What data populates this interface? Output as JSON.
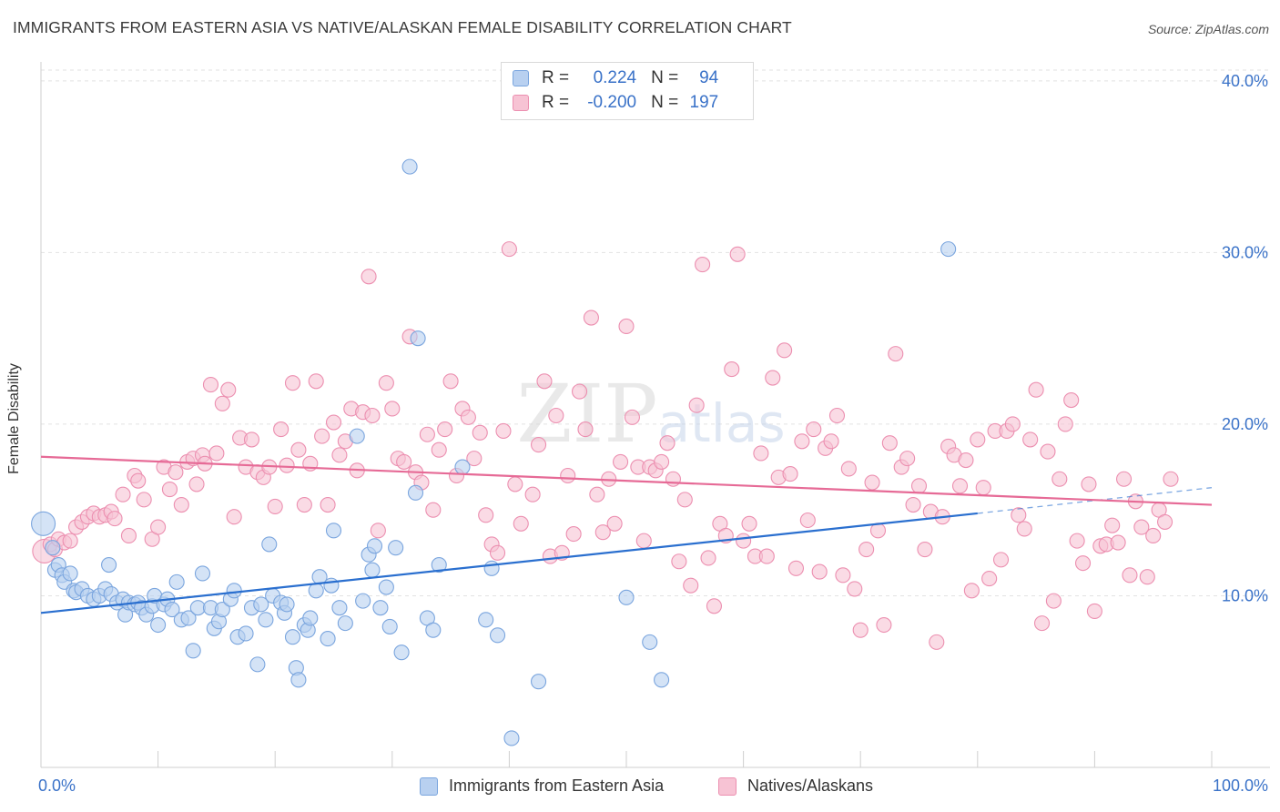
{
  "title": "IMMIGRANTS FROM EASTERN ASIA VS NATIVE/ALASKAN FEMALE DISABILITY CORRELATION CHART",
  "source": "Source: ZipAtlas.com",
  "watermark": "ZIPatlas",
  "legend_top": [
    {
      "r_label": "R =",
      "r_value": "0.224",
      "n_label": "N =",
      "n_value": "94",
      "color": "#6a9de0"
    },
    {
      "r_label": "R =",
      "r_value": "-0.200",
      "n_label": "N =",
      "n_value": "197",
      "color": "#ef88aa"
    }
  ],
  "legend_bottom": [
    "Immigrants from Eastern Asia",
    "Natives/Alaskans"
  ],
  "colors": {
    "blue_fill": "#b8d0f0",
    "blue_stroke": "#7aa5de",
    "blue_line": "#2a6fcf",
    "pink_fill": "#f7c3d4",
    "pink_stroke": "#ec8fb0",
    "pink_line": "#e66a96",
    "axis_label": "#3a72c8",
    "grid": "#e2e2e2"
  },
  "chart_data": {
    "type": "scatter",
    "title": "IMMIGRANTS FROM EASTERN ASIA VS NATIVE/ALASKAN FEMALE DISABILITY CORRELATION CHART",
    "xlabel": "",
    "ylabel": "Female Disability",
    "xlim": [
      0,
      100
    ],
    "ylim": [
      0,
      41
    ],
    "x_tick_labels": [
      "0.0%",
      "100.0%"
    ],
    "y_ticks": [
      10,
      20,
      30,
      40
    ],
    "y_tick_labels": [
      "10.0%",
      "20.0%",
      "30.0%",
      "40.0%"
    ],
    "series": [
      {
        "name": "Immigrants from Eastern Asia",
        "R": 0.224,
        "N": 94,
        "trend": {
          "x0": 0,
          "y0": 9.0,
          "x1": 80,
          "y1": 14.8,
          "dash_to_x": 100,
          "dash_to_y": 16.3
        },
        "points": [
          [
            0.2,
            14.2,
            "L"
          ],
          [
            1,
            12.8
          ],
          [
            1.2,
            11.5
          ],
          [
            1.5,
            11.8
          ],
          [
            1.8,
            11.2
          ],
          [
            2,
            10.8
          ],
          [
            2.5,
            11.3
          ],
          [
            2.8,
            10.3
          ],
          [
            3,
            10.2
          ],
          [
            3.5,
            10.4
          ],
          [
            4,
            10
          ],
          [
            4.5,
            9.8
          ],
          [
            5,
            10
          ],
          [
            5.5,
            10.4
          ],
          [
            5.8,
            11.8
          ],
          [
            6,
            10.1
          ],
          [
            6.5,
            9.6
          ],
          [
            7,
            9.8
          ],
          [
            7.2,
            8.9
          ],
          [
            7.5,
            9.6
          ],
          [
            8,
            9.5
          ],
          [
            8.3,
            9.6
          ],
          [
            8.6,
            9.3
          ],
          [
            9,
            8.9
          ],
          [
            9.5,
            9.4
          ],
          [
            9.7,
            10
          ],
          [
            10,
            8.3
          ],
          [
            10.5,
            9.5
          ],
          [
            10.8,
            9.8
          ],
          [
            11.2,
            9.2
          ],
          [
            11.6,
            10.8
          ],
          [
            12,
            8.6
          ],
          [
            12.6,
            8.7
          ],
          [
            13,
            6.8
          ],
          [
            13.4,
            9.3
          ],
          [
            13.8,
            11.3
          ],
          [
            14.5,
            9.3
          ],
          [
            14.8,
            8.1
          ],
          [
            15.2,
            8.5
          ],
          [
            15.5,
            9.2
          ],
          [
            16.2,
            9.8
          ],
          [
            16.5,
            10.3
          ],
          [
            16.8,
            7.6
          ],
          [
            17.5,
            7.8
          ],
          [
            18,
            9.3
          ],
          [
            18.5,
            6
          ],
          [
            18.8,
            9.5
          ],
          [
            19.2,
            8.6
          ],
          [
            19.5,
            13
          ],
          [
            19.8,
            10
          ],
          [
            20.5,
            9.6
          ],
          [
            20.8,
            9
          ],
          [
            21,
            9.5
          ],
          [
            21.5,
            7.6
          ],
          [
            21.8,
            5.8
          ],
          [
            22,
            5.1
          ],
          [
            22.5,
            8.3
          ],
          [
            22.8,
            8
          ],
          [
            23,
            8.7
          ],
          [
            23.5,
            10.3
          ],
          [
            23.8,
            11.1
          ],
          [
            24.5,
            7.5
          ],
          [
            24.8,
            10.6
          ],
          [
            25,
            13.8
          ],
          [
            25.5,
            9.3
          ],
          [
            26,
            8.4
          ],
          [
            27,
            19.3
          ],
          [
            27.5,
            9.7
          ],
          [
            28,
            12.4
          ],
          [
            28.3,
            11.5
          ],
          [
            28.5,
            12.9
          ],
          [
            29,
            9.3
          ],
          [
            29.5,
            10.5
          ],
          [
            29.8,
            8.2
          ],
          [
            30.3,
            12.8
          ],
          [
            30.8,
            6.7
          ],
          [
            31.5,
            35
          ],
          [
            32,
            16
          ],
          [
            32.2,
            25
          ],
          [
            33,
            8.7
          ],
          [
            33.5,
            8
          ],
          [
            34,
            11.8
          ],
          [
            36,
            17.5
          ],
          [
            38,
            8.6
          ],
          [
            38.5,
            11.6
          ],
          [
            39,
            7.7
          ],
          [
            40.2,
            1.7
          ],
          [
            42.5,
            5
          ],
          [
            50,
            9.9
          ],
          [
            52,
            7.3
          ],
          [
            53,
            5.1
          ],
          [
            77.5,
            30.2
          ]
        ]
      },
      {
        "name": "Natives/Alaskans",
        "R": -0.2,
        "N": 197,
        "trend": {
          "x0": 0,
          "y0": 18.1,
          "x1": 100,
          "y1": 15.3
        },
        "points": [
          [
            0.3,
            12.6,
            "L"
          ],
          [
            0.8,
            13
          ],
          [
            1.2,
            12.7
          ],
          [
            1.5,
            13.3
          ],
          [
            2,
            13.1
          ],
          [
            2.5,
            13.2
          ],
          [
            3,
            14
          ],
          [
            3.5,
            14.3
          ],
          [
            4,
            14.6
          ],
          [
            4.5,
            14.8
          ],
          [
            5,
            14.6
          ],
          [
            5.5,
            14.7
          ],
          [
            6,
            14.9
          ],
          [
            6.3,
            14.5
          ],
          [
            7,
            15.9
          ],
          [
            7.5,
            13.5
          ],
          [
            8,
            17
          ],
          [
            8.3,
            16.7
          ],
          [
            8.8,
            15.6
          ],
          [
            9.5,
            13.3
          ],
          [
            10,
            14
          ],
          [
            10.5,
            17.5
          ],
          [
            11,
            16.2
          ],
          [
            11.5,
            17.2
          ],
          [
            12,
            15.3
          ],
          [
            12.5,
            17.8
          ],
          [
            13,
            18
          ],
          [
            13.3,
            16.5
          ],
          [
            13.8,
            18.2
          ],
          [
            14,
            17.7
          ],
          [
            14.5,
            22.3
          ],
          [
            15,
            18.3
          ],
          [
            15.5,
            21.2
          ],
          [
            16,
            22
          ],
          [
            16.5,
            14.6
          ],
          [
            17,
            19.2
          ],
          [
            17.5,
            17.5
          ],
          [
            18,
            19.1
          ],
          [
            18.5,
            17.2
          ],
          [
            19,
            16.9
          ],
          [
            19.5,
            17.5
          ],
          [
            20,
            15.2
          ],
          [
            20.5,
            19.7
          ],
          [
            21,
            17.6
          ],
          [
            21.5,
            22.4
          ],
          [
            22,
            18.5
          ],
          [
            22.5,
            15.3
          ],
          [
            23,
            17.7
          ],
          [
            23.5,
            22.5
          ],
          [
            24,
            19.3
          ],
          [
            24.5,
            15.3
          ],
          [
            25,
            20.1
          ],
          [
            25.5,
            18.2
          ],
          [
            26,
            19
          ],
          [
            26.5,
            20.9
          ],
          [
            27,
            17.3
          ],
          [
            27.5,
            20.7
          ],
          [
            28,
            28.6
          ],
          [
            28.3,
            20.5
          ],
          [
            28.8,
            13.8
          ],
          [
            29.5,
            22.4
          ],
          [
            30,
            20.9
          ],
          [
            30.5,
            18
          ],
          [
            31,
            17.8
          ],
          [
            31.5,
            25.1
          ],
          [
            32,
            17.2
          ],
          [
            32.5,
            16.6
          ],
          [
            33,
            19.4
          ],
          [
            33.5,
            15
          ],
          [
            34,
            18.5
          ],
          [
            34.5,
            19.7
          ],
          [
            35,
            22.5
          ],
          [
            35.5,
            17
          ],
          [
            36,
            20.9
          ],
          [
            36.5,
            20.4
          ],
          [
            37,
            18
          ],
          [
            37.5,
            19.5
          ],
          [
            38,
            14.7
          ],
          [
            38.5,
            13
          ],
          [
            39,
            12.5
          ],
          [
            39.5,
            19.6
          ],
          [
            40,
            30.2
          ],
          [
            40.5,
            16.5
          ],
          [
            41,
            14.2
          ],
          [
            42,
            15.9
          ],
          [
            42.5,
            18.8
          ],
          [
            43,
            22.5
          ],
          [
            43.5,
            12.3
          ],
          [
            44,
            20.5
          ],
          [
            44.5,
            12.5
          ],
          [
            45,
            17
          ],
          [
            45.5,
            13.6
          ],
          [
            46,
            21.9
          ],
          [
            46.5,
            19.7
          ],
          [
            47,
            26.2
          ],
          [
            47.5,
            15.9
          ],
          [
            48,
            13.7
          ],
          [
            48.5,
            16.8
          ],
          [
            49,
            14.2
          ],
          [
            49.5,
            17.8
          ],
          [
            50,
            25.7
          ],
          [
            50.5,
            20.4
          ],
          [
            51,
            17.5
          ],
          [
            51.5,
            13.2
          ],
          [
            52,
            17.5
          ],
          [
            52.5,
            17.3
          ],
          [
            53,
            17.8
          ],
          [
            53.5,
            18.9
          ],
          [
            54,
            16.8
          ],
          [
            54.5,
            12
          ],
          [
            55,
            15.6
          ],
          [
            55.5,
            10.6
          ],
          [
            56,
            21.1
          ],
          [
            56.5,
            29.3
          ],
          [
            57,
            12.2
          ],
          [
            57.5,
            9.4
          ],
          [
            58,
            14.2
          ],
          [
            58.5,
            13.5
          ],
          [
            59,
            23.2
          ],
          [
            59.5,
            29.9
          ],
          [
            60,
            13.2
          ],
          [
            60.5,
            14.2
          ],
          [
            61,
            12.3
          ],
          [
            61.5,
            18.3
          ],
          [
            62,
            12.3
          ],
          [
            62.5,
            22.7
          ],
          [
            63,
            16.9
          ],
          [
            63.5,
            24.3
          ],
          [
            64,
            17.1
          ],
          [
            64.5,
            11.6
          ],
          [
            65,
            19
          ],
          [
            65.5,
            14.4
          ],
          [
            66,
            19.7
          ],
          [
            66.5,
            11.4
          ],
          [
            67,
            18.6
          ],
          [
            67.5,
            19
          ],
          [
            68,
            20.5
          ],
          [
            68.5,
            11.2
          ],
          [
            69,
            17.4
          ],
          [
            69.5,
            10.4
          ],
          [
            70,
            8
          ],
          [
            70.5,
            12.7
          ],
          [
            71,
            16.6
          ],
          [
            71.5,
            13.8
          ],
          [
            72,
            8.3
          ],
          [
            72.5,
            18.9
          ],
          [
            73,
            24.1
          ],
          [
            73.5,
            17.5
          ],
          [
            74,
            18
          ],
          [
            74.5,
            15.3
          ],
          [
            75,
            16.4
          ],
          [
            75.5,
            12.7
          ],
          [
            76,
            14.9
          ],
          [
            76.5,
            7.3
          ],
          [
            77,
            14.6
          ],
          [
            77.5,
            18.7
          ],
          [
            78,
            18.2
          ],
          [
            78.5,
            16.4
          ],
          [
            79,
            17.9
          ],
          [
            79.5,
            10.3
          ],
          [
            80,
            19.1
          ],
          [
            80.5,
            16.3
          ],
          [
            81,
            11
          ],
          [
            81.5,
            19.6
          ],
          [
            82,
            12.1
          ],
          [
            82.5,
            19.6
          ],
          [
            83,
            20
          ],
          [
            83.5,
            14.7
          ],
          [
            84,
            13.9
          ],
          [
            84.5,
            19.1
          ],
          [
            85,
            22
          ],
          [
            85.5,
            8.4
          ],
          [
            86,
            18.4
          ],
          [
            86.5,
            9.7
          ],
          [
            87,
            16.8
          ],
          [
            87.5,
            20
          ],
          [
            88,
            21.4
          ],
          [
            88.5,
            13.2
          ],
          [
            89,
            11.9
          ],
          [
            89.5,
            16.5
          ],
          [
            90,
            9.1
          ],
          [
            90.5,
            12.9
          ],
          [
            91,
            13
          ],
          [
            91.5,
            14.1
          ],
          [
            92,
            13.1
          ],
          [
            92.5,
            16.8
          ],
          [
            93,
            11.2
          ],
          [
            93.5,
            15.5
          ],
          [
            94,
            14
          ],
          [
            94.5,
            11.1
          ],
          [
            95,
            13.5
          ],
          [
            95.5,
            15
          ],
          [
            96,
            14.3
          ],
          [
            96.5,
            16.8
          ]
        ]
      }
    ]
  }
}
